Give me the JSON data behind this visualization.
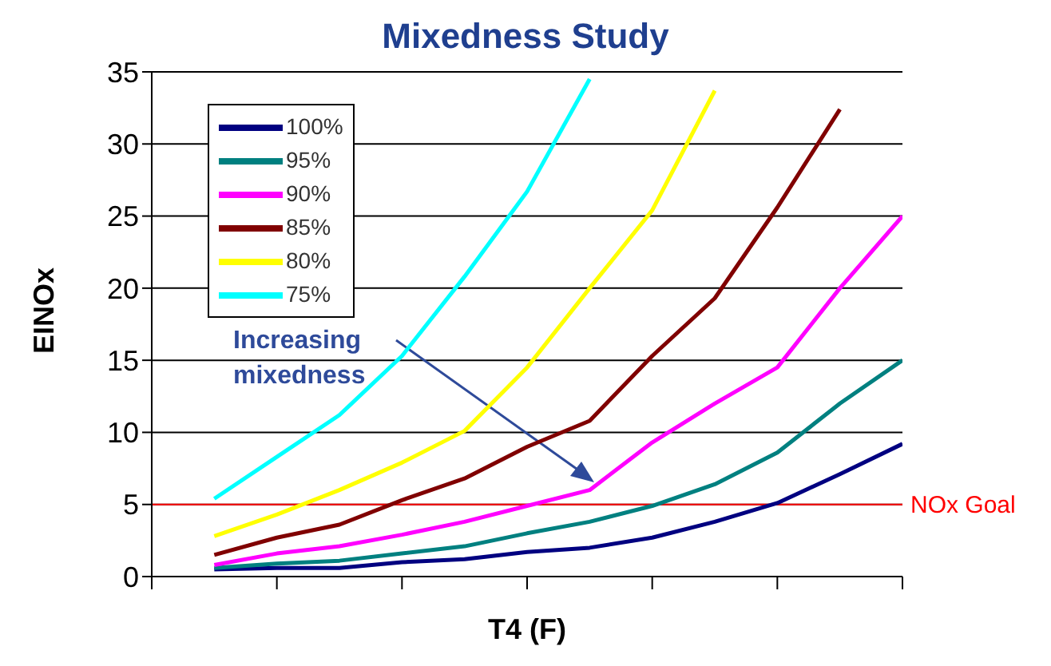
{
  "chart_data": {
    "type": "line",
    "title": "Mixedness Study",
    "xlabel": "T4 (F)",
    "ylabel": "EINOx",
    "annotations": [
      "Increasing mixedness"
    ],
    "categories": [
      null,
      null,
      null,
      null,
      null,
      null,
      null,
      null,
      null,
      null,
      null,
      null
    ],
    "ylim": [
      0,
      35
    ],
    "yticks": [
      0,
      5,
      10,
      15,
      20,
      25,
      30,
      35
    ],
    "grid": "y",
    "legend": "top left",
    "marker": "none",
    "line_style": "solid",
    "ref_lines": [
      {
        "axis": "y",
        "value": 5,
        "label": "NOx Goal",
        "color": "#ff0000"
      }
    ],
    "series": [
      {
        "name": "100%",
        "color": "#000080",
        "values": [
          0.5,
          0.6,
          0.6,
          1.0,
          1.2,
          1.7,
          2.0,
          2.7,
          3.8,
          5.1,
          7.1,
          9.2
        ]
      },
      {
        "name": "95%",
        "color": "#008080",
        "values": [
          0.6,
          0.9,
          1.1,
          1.6,
          2.1,
          3.0,
          3.8,
          4.9,
          6.4,
          8.6,
          12.0,
          15.0
        ]
      },
      {
        "name": "90%",
        "color": "#ff00ff",
        "values": [
          0.8,
          1.6,
          2.1,
          2.9,
          3.8,
          4.9,
          6.0,
          9.3,
          12.0,
          14.5,
          20.0,
          25.0
        ]
      },
      {
        "name": "85%",
        "color": "#800000",
        "values": [
          1.5,
          2.7,
          3.6,
          5.3,
          6.8,
          9.0,
          10.8,
          15.3,
          19.3,
          25.6,
          32.4,
          null
        ]
      },
      {
        "name": "80%",
        "color": "#ffff00",
        "values": [
          2.8,
          4.3,
          6.0,
          7.9,
          10.1,
          14.5,
          20.0,
          25.4,
          33.7,
          null,
          null,
          null
        ]
      },
      {
        "name": "75%",
        "color": "#00ffff",
        "values": [
          5.4,
          8.3,
          11.2,
          15.3,
          20.8,
          26.7,
          34.5,
          null,
          null,
          null,
          null,
          null
        ]
      }
    ]
  }
}
